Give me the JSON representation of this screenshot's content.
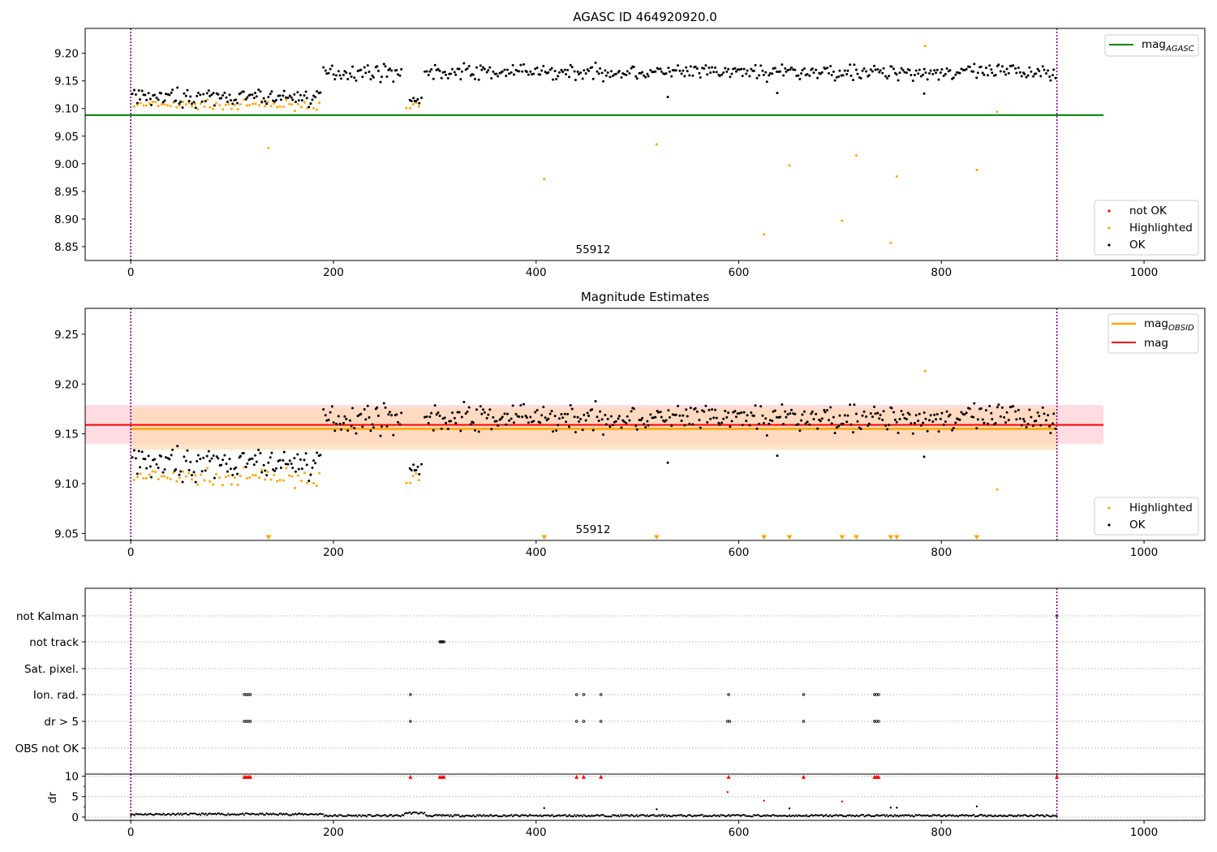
{
  "figure": {
    "vline_x": [
      0,
      914
    ],
    "obsid_label": "55912",
    "xlim": [
      -45,
      1060
    ],
    "x_ticks": [
      0,
      200,
      400,
      600,
      800,
      1000
    ]
  },
  "colors": {
    "ok": "#000000",
    "highlighted": "#ffa500",
    "not_ok": "#ff0000",
    "mag_agasc": "#008000",
    "mag_obsid": "#ffa500",
    "mag": "#ff0000",
    "vline": "#800080",
    "band_mag": "#ffc0cb",
    "band_obsid": "#ffd9b3"
  },
  "chart_data": [
    {
      "type": "scatter",
      "title": "AGASC ID 464920920.0",
      "ylim": [
        8.825,
        9.245
      ],
      "y_ticks": [
        "8.85",
        "8.90",
        "8.95",
        "9.00",
        "9.05",
        "9.10",
        "9.15",
        "9.20"
      ],
      "mag_agasc": 9.088,
      "legend_lines": [
        {
          "label": "mag",
          "sub": "AGASC"
        }
      ],
      "legend_points": [
        {
          "label": "not OK",
          "color_key": "not_ok"
        },
        {
          "label": "Highlighted",
          "color_key": "highlighted"
        },
        {
          "label": "OK",
          "color_key": "ok"
        }
      ],
      "series": [
        {
          "name": "OK",
          "segments": [
            [
              1,
              187,
              9.12,
              0.01
            ],
            [
              190,
              267,
              9.166,
              0.01
            ],
            [
              275,
              287,
              9.115,
              0.004
            ],
            [
              290,
              914,
              9.166,
              0.01
            ]
          ],
          "outliers": [
            [
              530,
              9.121
            ],
            [
              638,
              9.128
            ],
            [
              783,
              9.127
            ]
          ]
        },
        {
          "name": "Highlighted",
          "segments": [
            [
              3,
              187,
              9.106,
              0.006
            ],
            [
              272,
              286,
              9.105,
              0.004
            ]
          ],
          "outliers": [
            [
              136,
              9.029
            ],
            [
              408,
              8.972
            ],
            [
              519,
              9.035
            ],
            [
              625,
              8.872
            ],
            [
              650,
              8.997
            ],
            [
              702,
              8.897
            ],
            [
              716,
              9.015
            ],
            [
              750,
              8.857
            ],
            [
              756,
              8.977
            ],
            [
              784,
              9.213
            ],
            [
              835,
              8.989
            ],
            [
              855,
              9.094
            ]
          ]
        }
      ]
    },
    {
      "type": "scatter",
      "title": "Magnitude Estimates",
      "ylim": [
        9.043,
        9.276
      ],
      "y_ticks": [
        "9.05",
        "9.10",
        "9.15",
        "9.20",
        "9.25"
      ],
      "mag": 9.159,
      "mag_band": [
        9.14,
        9.179
      ],
      "mag_obsid": 9.155,
      "mag_obsid_band": [
        9.134,
        9.176
      ],
      "legend_lines": [
        {
          "label": "mag",
          "sub": "OBSID",
          "color_key": "mag_obsid"
        },
        {
          "label": "mag",
          "sub": "",
          "color_key": "mag"
        }
      ],
      "legend_points": [
        {
          "label": "Highlighted",
          "color_key": "highlighted"
        },
        {
          "label": "OK",
          "color_key": "ok"
        }
      ],
      "below_range_markers_x": [
        136,
        408,
        519,
        625,
        650,
        702,
        716,
        750,
        756,
        835
      ],
      "highlight_outliers": [
        [
          784,
          9.213
        ],
        [
          855,
          9.094
        ]
      ]
    },
    {
      "type": "scatter",
      "flag_rows": [
        "not Kalman",
        "not track",
        "Sat. pixel.",
        "Ion. rad.",
        "dr > 5",
        "OBS not OK"
      ],
      "flags": {
        "not Kalman": [
          914
        ],
        "not track": [
          305,
          306,
          307,
          308,
          309
        ],
        "Sat. pixel.": [],
        "Ion. rad.": [
          112,
          114,
          116,
          118,
          276,
          440,
          447,
          464,
          590,
          664,
          734,
          736,
          738
        ],
        "dr > 5": [
          112,
          114,
          116,
          118,
          276,
          440,
          447,
          464,
          589,
          591,
          664,
          734,
          736,
          738
        ],
        "OBS not OK": []
      },
      "dr": {
        "ylabel": "dr",
        "y_ticks": [
          "0",
          "5",
          "10"
        ],
        "ylim": [
          -0.8,
          10.5
        ],
        "clipped_x": [
          112,
          114,
          116,
          118,
          276,
          305,
          307,
          309,
          440,
          447,
          464,
          590,
          664,
          734,
          736,
          738,
          914
        ],
        "red_points": [
          [
            589,
            6.1
          ],
          [
            625,
            4.0
          ],
          [
            702,
            3.8
          ]
        ],
        "outliers": [
          [
            408,
            2.2
          ],
          [
            519,
            1.9
          ],
          [
            650,
            2.1
          ],
          [
            750,
            2.3
          ],
          [
            756,
            2.3
          ],
          [
            835,
            2.6
          ]
        ]
      }
    }
  ]
}
